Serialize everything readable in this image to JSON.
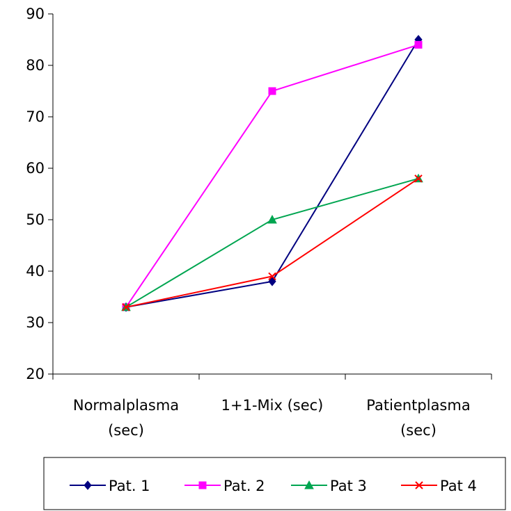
{
  "chart_data": {
    "type": "line",
    "categories": [
      [
        "Normalplasma",
        "(sec)"
      ],
      [
        "1+1-Mix (sec)"
      ],
      [
        "Patientplasma",
        "(sec)"
      ]
    ],
    "ylim": [
      20,
      90
    ],
    "yticks": [
      20,
      30,
      40,
      50,
      60,
      70,
      80,
      90
    ],
    "grid": false,
    "legend_position": "bottom",
    "series": [
      {
        "name": "Pat. 1",
        "values": [
          33,
          38,
          85
        ],
        "color": "#000080",
        "marker": "diamond"
      },
      {
        "name": "Pat. 2",
        "values": [
          33,
          75,
          84
        ],
        "color": "#ff00ff",
        "marker": "square"
      },
      {
        "name": "Pat 3",
        "values": [
          33,
          50,
          58
        ],
        "color": "#00a550",
        "marker": "triangle"
      },
      {
        "name": "Pat 4",
        "values": [
          33,
          39,
          58
        ],
        "color": "#ff0000",
        "marker": "x"
      }
    ]
  }
}
